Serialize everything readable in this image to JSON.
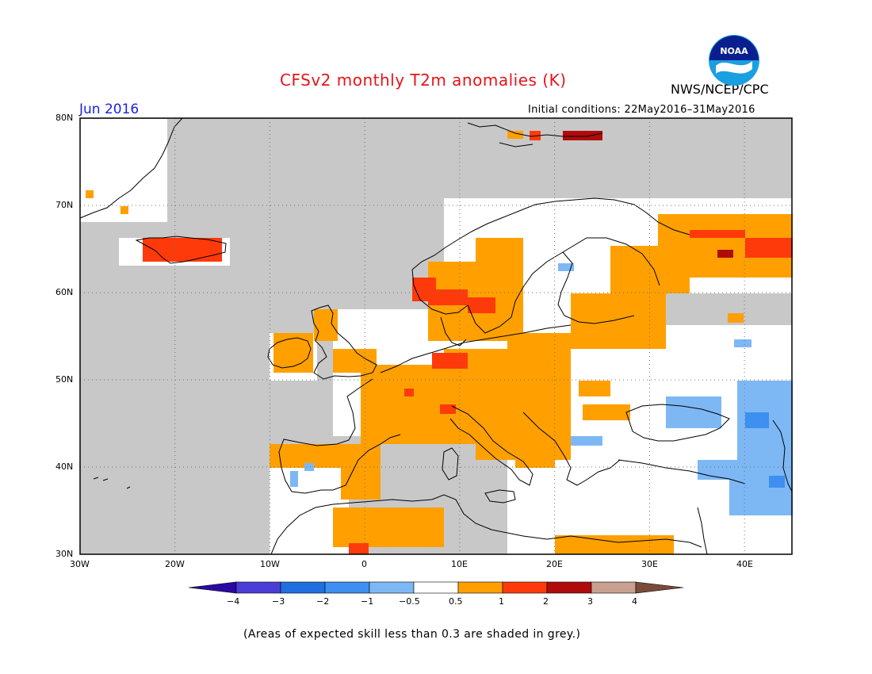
{
  "header": {
    "title": "CFSv2 monthly T2m anomalies (K)",
    "agency": "NWS/NCEP/CPC",
    "logo_text": "NOAA",
    "month": "Jun 2016",
    "initial_conditions": "Initial conditions: 22May2016–31May2016"
  },
  "map": {
    "region": "Europe",
    "projection": "lat-lon",
    "lon_range": [
      -30,
      45
    ],
    "lat_range": [
      30,
      80
    ],
    "ocean_and_low_skill_color": "#c8c8c8",
    "neutral_color": "#ffffff",
    "x_ticks": [
      "30W",
      "20W",
      "10W",
      "0",
      "10E",
      "20E",
      "30E",
      "40E"
    ],
    "y_ticks": [
      "80N",
      "70N",
      "60N",
      "50N",
      "40N",
      "30N"
    ],
    "grid": "dotted"
  },
  "colorbar": {
    "tick_labels": [
      "−4",
      "−3",
      "−2",
      "−1",
      "−0.5",
      "0.5",
      "1",
      "2",
      "3",
      "4"
    ],
    "colors": [
      "#2a0aa0",
      "#4b3ed6",
      "#1f6fe0",
      "#3d8ff0",
      "#7db8f5",
      "#ffffff",
      "#ffa000",
      "#ff3a0a",
      "#b00b0b",
      "#c8a090",
      "#7a4a3a"
    ]
  },
  "footer": {
    "note": "(Areas of expected skill less than 0.3 are shaded in grey.)"
  }
}
